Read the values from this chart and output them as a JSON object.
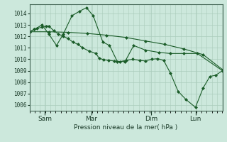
{
  "background_color": "#cce8dc",
  "grid_color": "#aaccbb",
  "line_color": "#1a5c28",
  "marker_color": "#1a5c28",
  "xlabel": "Pression niveau de la mer( hPa )",
  "ylim": [
    1005.5,
    1014.8
  ],
  "yticks": [
    1006,
    1007,
    1008,
    1009,
    1010,
    1011,
    1012,
    1013,
    1014
  ],
  "xtick_labels": [
    "Sam",
    "Mar",
    "Dim",
    "Lun"
  ],
  "xtick_positions": [
    0.08,
    0.32,
    0.63,
    0.86
  ],
  "xlim": [
    0,
    1.0
  ],
  "series": [
    {
      "x": [
        0.0,
        0.025,
        0.04,
        0.065,
        0.085,
        0.1,
        0.125,
        0.15,
        0.175,
        0.2,
        0.225,
        0.25,
        0.275,
        0.31,
        0.345,
        0.36,
        0.385,
        0.41,
        0.44,
        0.47,
        0.5,
        0.535,
        0.57,
        0.6,
        0.635,
        0.665,
        0.695,
        0.73,
        0.77,
        0.81,
        0.86,
        0.9,
        0.935,
        0.965,
        1.0
      ],
      "y": [
        1012.4,
        1012.6,
        1012.7,
        1012.8,
        1012.9,
        1012.9,
        1012.5,
        1012.2,
        1012.0,
        1011.8,
        1011.5,
        1011.3,
        1011.0,
        1010.7,
        1010.5,
        1010.1,
        1009.95,
        1009.9,
        1009.85,
        1009.8,
        1009.9,
        1010.0,
        1009.9,
        1009.85,
        1010.0,
        1010.05,
        1009.9,
        1008.8,
        1007.2,
        1006.5,
        1005.8,
        1007.5,
        1008.5,
        1008.6,
        1009.0
      ]
    },
    {
      "x": [
        0.0,
        0.025,
        0.065,
        0.1,
        0.14,
        0.175,
        0.22,
        0.26,
        0.295,
        0.33,
        0.38,
        0.415,
        0.455,
        0.495,
        0.54,
        0.6,
        0.67,
        0.73,
        0.8,
        0.87,
        1.0
      ],
      "y": [
        1012.4,
        1012.6,
        1013.0,
        1012.2,
        1011.2,
        1012.2,
        1013.8,
        1014.2,
        1014.5,
        1013.8,
        1011.5,
        1011.2,
        1009.8,
        1009.8,
        1011.2,
        1010.8,
        1010.6,
        1010.5,
        1010.5,
        1010.5,
        1009.0
      ]
    },
    {
      "x": [
        0.0,
        0.1,
        0.2,
        0.3,
        0.4,
        0.5,
        0.6,
        0.7,
        0.8,
        0.9,
        1.0
      ],
      "y": [
        1012.4,
        1012.4,
        1012.35,
        1012.25,
        1012.1,
        1011.9,
        1011.6,
        1011.3,
        1010.9,
        1010.4,
        1009.1
      ]
    }
  ]
}
